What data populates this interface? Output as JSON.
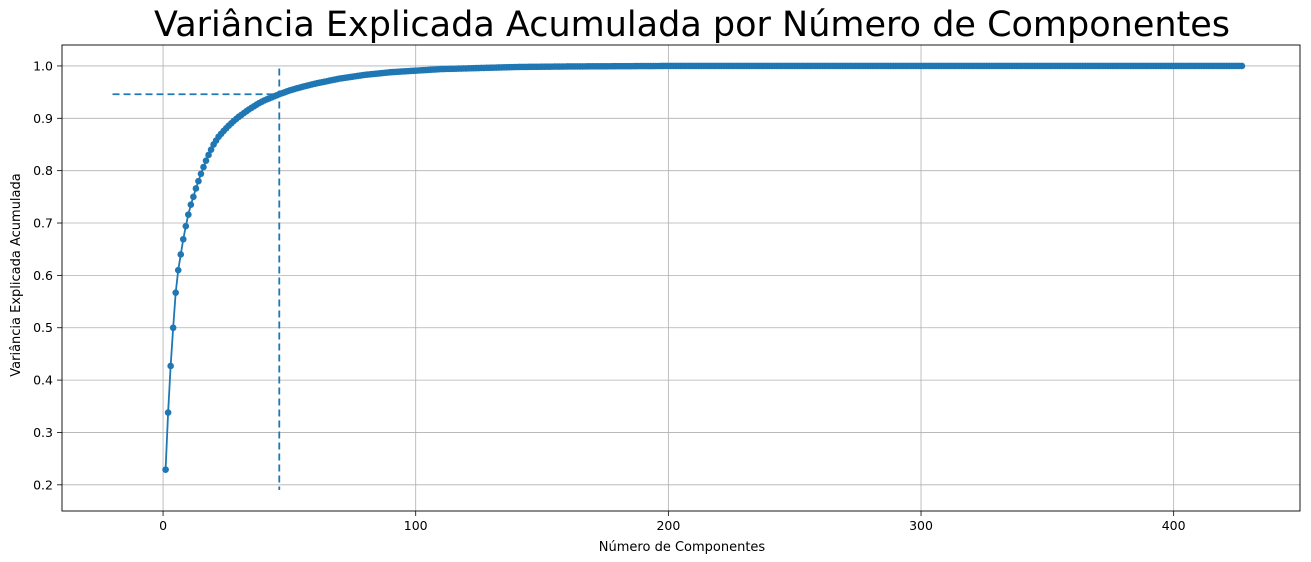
{
  "chart_data": {
    "type": "line",
    "title": "Variância Explicada Acumulada por Número de Componentes",
    "xlabel": "Número de Componentes",
    "ylabel": "Variância Explicada Acumulada",
    "xlim": [
      -40,
      450
    ],
    "ylim": [
      0.15,
      1.04
    ],
    "xticks": [
      0,
      100,
      200,
      300,
      400
    ],
    "yticks": [
      0.2,
      0.3,
      0.4,
      0.5,
      0.6,
      0.7,
      0.8,
      0.9,
      1.0
    ],
    "grid": true,
    "n_components": 427,
    "series": [
      {
        "color": "#1f77b4",
        "marker": "circle",
        "points": [
          [
            1,
            0.229
          ],
          [
            2,
            0.338
          ],
          [
            3,
            0.427
          ],
          [
            4,
            0.5
          ],
          [
            5,
            0.567
          ],
          [
            6,
            0.61
          ],
          [
            7,
            0.64
          ],
          [
            8,
            0.669
          ],
          [
            9,
            0.694
          ],
          [
            10,
            0.716
          ],
          [
            11,
            0.735
          ],
          [
            12,
            0.75
          ],
          [
            13,
            0.766
          ],
          [
            14,
            0.78
          ],
          [
            15,
            0.794
          ],
          [
            16,
            0.807
          ],
          [
            17,
            0.819
          ],
          [
            18,
            0.83
          ],
          [
            19,
            0.84
          ],
          [
            20,
            0.85
          ],
          [
            22,
            0.865
          ],
          [
            24,
            0.876
          ],
          [
            26,
            0.886
          ],
          [
            28,
            0.895
          ],
          [
            30,
            0.903
          ],
          [
            32,
            0.91
          ],
          [
            34,
            0.917
          ],
          [
            36,
            0.923
          ],
          [
            38,
            0.929
          ],
          [
            40,
            0.934
          ],
          [
            43,
            0.94
          ],
          [
            46,
            0.946
          ],
          [
            50,
            0.953
          ],
          [
            55,
            0.96
          ],
          [
            60,
            0.966
          ],
          [
            65,
            0.971
          ],
          [
            70,
            0.976
          ],
          [
            80,
            0.983
          ],
          [
            90,
            0.988
          ],
          [
            100,
            0.991
          ],
          [
            110,
            0.994
          ],
          [
            125,
            0.996
          ],
          [
            140,
            0.998
          ],
          [
            160,
            0.999
          ],
          [
            200,
            1.0
          ],
          [
            427,
            1.0
          ]
        ]
      }
    ],
    "reference_lines": {
      "threshold_y": 0.946,
      "threshold_x": 46,
      "horizontal_x_start": -20,
      "vertical_y_top": 0.995,
      "style": "dashed"
    }
  }
}
